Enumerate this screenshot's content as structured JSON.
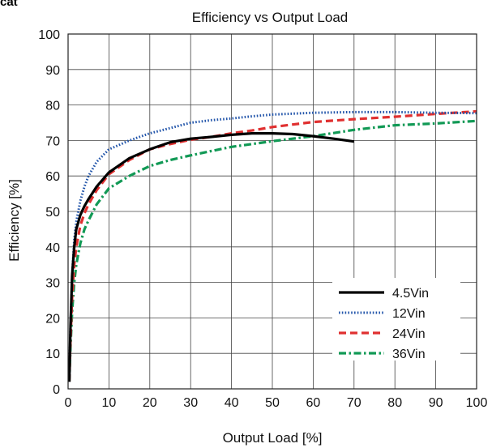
{
  "corner_text": "cat",
  "chart_data": {
    "type": "line",
    "title": "Efficiency vs Output Load",
    "xlabel": "Output Load [%]",
    "ylabel": "Efficiency [%]",
    "xlim": [
      0,
      100
    ],
    "ylim": [
      0,
      100
    ],
    "xticks": [
      0,
      10,
      20,
      30,
      40,
      50,
      60,
      70,
      80,
      90,
      100
    ],
    "yticks": [
      0,
      10,
      20,
      30,
      40,
      50,
      60,
      70,
      80,
      90,
      100
    ],
    "grid": true,
    "legend_position": "lower-right",
    "series": [
      {
        "name": "4.5Vin",
        "color": "#000000",
        "style": "solid",
        "x": [
          0.3,
          0.6,
          1,
          1.5,
          2,
          3,
          4,
          5,
          7,
          10,
          15,
          20,
          25,
          30,
          35,
          40,
          45,
          50,
          55,
          60,
          65,
          70
        ],
        "y": [
          2,
          18,
          32,
          40,
          45,
          49,
          51.5,
          53.5,
          57,
          61,
          65,
          67.5,
          69.5,
          70.5,
          71,
          71.6,
          72,
          72,
          71.8,
          71.2,
          70.5,
          69.7
        ]
      },
      {
        "name": "12Vin",
        "color": "#2255aa",
        "style": "dotted",
        "x": [
          0.3,
          0.6,
          1,
          1.5,
          2,
          3,
          4,
          5,
          7,
          10,
          15,
          20,
          25,
          30,
          35,
          40,
          45,
          50,
          60,
          70,
          80,
          90,
          100
        ],
        "y": [
          2,
          18,
          32,
          42,
          47,
          53,
          57,
          60,
          64,
          67.5,
          70,
          72,
          73.5,
          75,
          75.7,
          76.2,
          76.8,
          77.3,
          77.8,
          78,
          78,
          77.8,
          77.7
        ]
      },
      {
        "name": "24Vin",
        "color": "#e03030",
        "style": "dashed",
        "x": [
          0.3,
          0.6,
          1,
          1.5,
          2,
          3,
          4,
          5,
          7,
          10,
          15,
          20,
          25,
          30,
          35,
          40,
          45,
          50,
          60,
          70,
          80,
          90,
          100
        ],
        "y": [
          2,
          14,
          26,
          35,
          40,
          46,
          49.5,
          52,
          56,
          60.5,
          64.5,
          67.5,
          69,
          70.2,
          71,
          72,
          72.8,
          73.8,
          75.2,
          76,
          76.7,
          77.5,
          78.2
        ]
      },
      {
        "name": "36Vin",
        "color": "#119955",
        "style": "dashdot",
        "x": [
          0.3,
          0.6,
          1,
          1.5,
          2,
          3,
          4,
          5,
          7,
          10,
          15,
          20,
          25,
          30,
          35,
          40,
          45,
          50,
          60,
          70,
          80,
          90,
          100
        ],
        "y": [
          2,
          12,
          22,
          30,
          35,
          41,
          45,
          47.5,
          52,
          56.5,
          60,
          62.8,
          64.5,
          65.8,
          67,
          68.2,
          69,
          69.8,
          71.2,
          73,
          74.3,
          74.8,
          75.5
        ]
      }
    ]
  }
}
